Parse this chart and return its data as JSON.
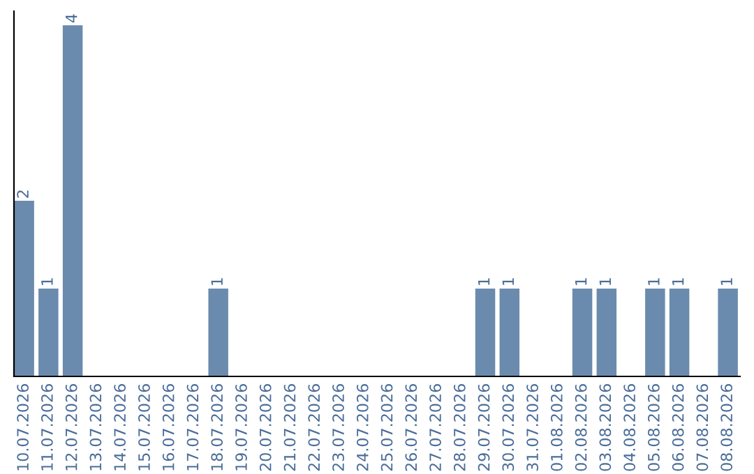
{
  "chart_data": {
    "type": "bar",
    "categories": [
      "10.07.2026",
      "11.07.2026",
      "12.07.2026",
      "13.07.2026",
      "14.07.2026",
      "15.07.2026",
      "16.07.2026",
      "17.07.2026",
      "18.07.2026",
      "19.07.2026",
      "20.07.2026",
      "21.07.2026",
      "22.07.2026",
      "23.07.2026",
      "24.07.2026",
      "25.07.2026",
      "26.07.2026",
      "27.07.2026",
      "28.07.2026",
      "29.07.2026",
      "30.07.2026",
      "31.07.2026",
      "01.08.2026",
      "02.08.2026",
      "03.08.2026",
      "04.08.2026",
      "05.08.2026",
      "06.08.2026",
      "07.08.2026",
      "08.08.2026"
    ],
    "values": [
      2,
      1,
      4,
      0,
      0,
      0,
      0,
      0,
      1,
      0,
      0,
      0,
      0,
      0,
      0,
      0,
      0,
      0,
      0,
      1,
      1,
      0,
      0,
      1,
      1,
      0,
      1,
      1,
      0,
      1
    ],
    "value_labels": [
      "2",
      "1",
      "4",
      null,
      null,
      null,
      null,
      null,
      "1",
      null,
      null,
      null,
      null,
      null,
      null,
      null,
      null,
      null,
      null,
      "1",
      "1",
      null,
      null,
      "1",
      "1",
      null,
      "1",
      "1",
      null,
      "1"
    ],
    "color": "#6a8bad",
    "grid": false,
    "legend": false,
    "tick_labels": "x"
  }
}
